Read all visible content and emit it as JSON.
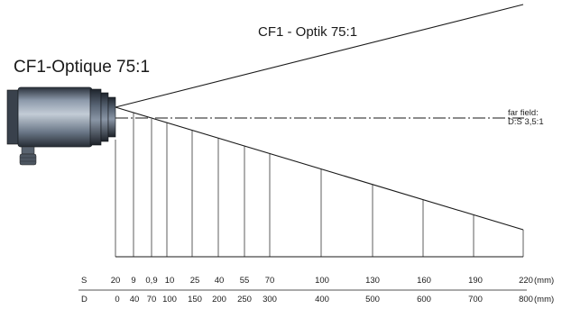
{
  "title_de": "CF1 - Optik 75:1",
  "title_fr": "CF1-Optique 75:1",
  "far_field": {
    "line1": "far field:",
    "line2": "D:S 3,5:1"
  },
  "rows": {
    "s_label": "S",
    "d_label": "D",
    "unit": "(mm)",
    "s_values": [
      "20",
      "9",
      "0,9",
      "10",
      "25",
      "40",
      "55",
      "70",
      "100",
      "130",
      "160",
      "190",
      "220"
    ],
    "d_values": [
      "0",
      "40",
      "70",
      "100",
      "150",
      "200",
      "250",
      "300",
      "400",
      "500",
      "600",
      "700",
      "800"
    ]
  },
  "colors": {
    "line": "#1a1a1a",
    "sensor_body": "#6f7c8c",
    "sensor_dark": "#2e3642"
  },
  "sensor": {
    "icon": "infrared-sensor-icon"
  }
}
